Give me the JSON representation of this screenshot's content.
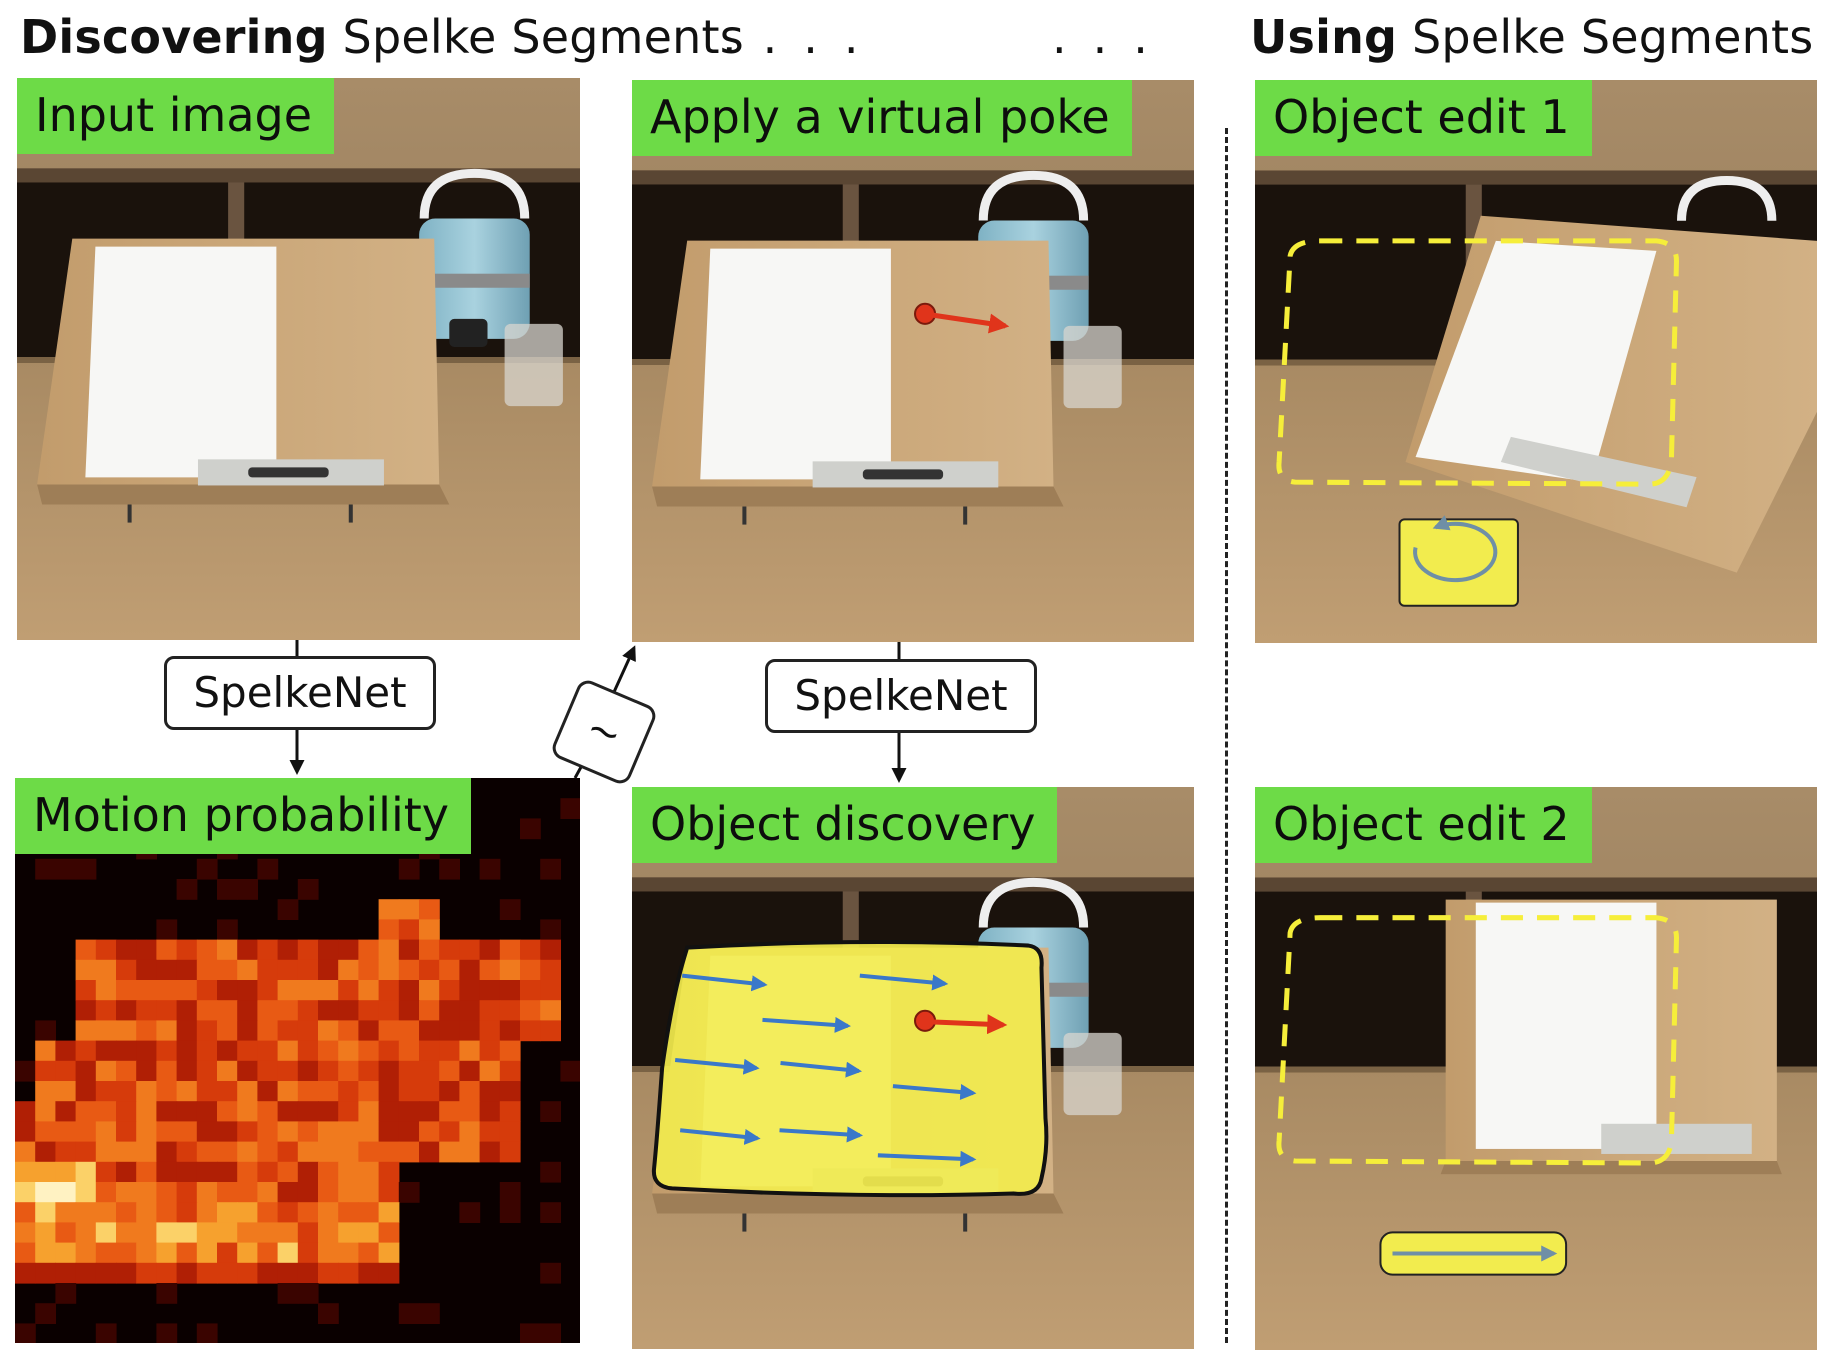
{
  "header": {
    "discovering_bold": "Discovering",
    "discovering_rest": "Spelke Segments",
    "dots_left": "....",
    "dots_right": "...",
    "using_bold": "Using",
    "using_rest": "Spelke Segments"
  },
  "panels": {
    "input": "Input image",
    "poke": "Apply a virtual poke",
    "motion": "Motion probability",
    "discovery": "Object discovery",
    "edit1": "Object edit 1",
    "edit2": "Object edit 2"
  },
  "boxes": {
    "spelkenet_left": "SpelkeNet",
    "spelkenet_right": "SpelkeNet",
    "sample_symbol": "~"
  },
  "colors": {
    "tag_green": "#6ddb47",
    "poke_red": "#e0341b",
    "flow_blue": "#3a78c9",
    "segment_yellow": "#f2ec4e",
    "heat_dark": "#0a0000"
  }
}
